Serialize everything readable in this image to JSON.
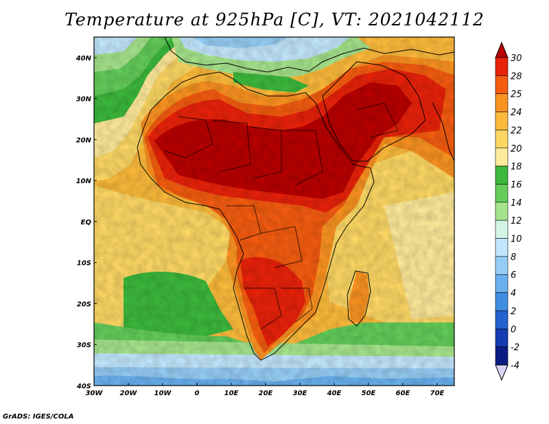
{
  "title": "Temperature at 925hPa [C], VT: 2021042112",
  "credit": "GrADS: IGES/COLA",
  "map": {
    "lon_range": [
      -30,
      75
    ],
    "lat_range": [
      -40,
      45
    ],
    "lon_ticks": [
      "30W",
      "20W",
      "10W",
      "0",
      "10E",
      "20E",
      "30E",
      "40E",
      "50E",
      "60E",
      "70E"
    ],
    "lat_ticks": [
      "40N",
      "30N",
      "20N",
      "10N",
      "EQ",
      "10S",
      "20S",
      "30S",
      "40S"
    ]
  },
  "colorbar": {
    "labels": [
      "30",
      "28",
      "25",
      "24",
      "22",
      "20",
      "18",
      "16",
      "14",
      "12",
      "10",
      "8",
      "6",
      "4",
      "2",
      "0",
      "-2",
      "-4"
    ],
    "colors": [
      "#b80000",
      "#e8220a",
      "#f45c10",
      "#f99221",
      "#fbba3b",
      "#fcd764",
      "#fde99a",
      "#3cb83c",
      "#63cc5a",
      "#a5e38c",
      "#d2f5e6",
      "#c2e6fb",
      "#96cdf4",
      "#69b0ee",
      "#3f8ee3",
      "#2462cf",
      "#153bb0",
      "#0a1d82",
      "#000b4f"
    ]
  }
}
